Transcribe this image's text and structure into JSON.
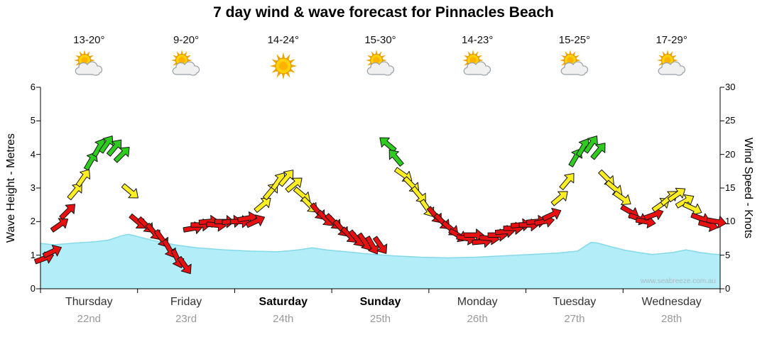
{
  "title": "7 day wind & wave forecast for Pinnacles Beach",
  "watermark": "www.seabreeze.com.au",
  "axes": {
    "left": {
      "label": "Wave Height - Metres",
      "ticks": [
        0,
        1,
        2,
        3,
        4,
        5,
        6
      ],
      "max": 6
    },
    "right": {
      "label": "Wind Speed - Knots",
      "ticks": [
        0,
        5,
        10,
        15,
        20,
        25,
        30
      ],
      "max": 30
    }
  },
  "days": [
    {
      "name": "Thursday",
      "date": "22nd",
      "temp": "13-20°",
      "icon": "partly-cloudy",
      "emphasis": false
    },
    {
      "name": "Friday",
      "date": "23rd",
      "temp": "9-20°",
      "icon": "partly-cloudy",
      "emphasis": false
    },
    {
      "name": "Saturday",
      "date": "24th",
      "temp": "14-24°",
      "icon": "sunny",
      "emphasis": true
    },
    {
      "name": "Sunday",
      "date": "25th",
      "temp": "15-30°",
      "icon": "partly-cloudy",
      "emphasis": true
    },
    {
      "name": "Monday",
      "date": "26th",
      "temp": "14-23°",
      "icon": "partly-cloudy",
      "emphasis": false
    },
    {
      "name": "Tuesday",
      "date": "27th",
      "temp": "15-25°",
      "icon": "partly-cloudy",
      "emphasis": false
    },
    {
      "name": "Wednesday",
      "date": "28th",
      "temp": "17-29°",
      "icon": "partly-cloudy",
      "emphasis": false
    }
  ],
  "colors": {
    "wave_fill": "#b2edf8",
    "wave_stroke": "#84d9ea",
    "wind_low": "#e81010",
    "wind_mid": "#ffee22",
    "wind_high": "#2ecc1e",
    "axis": "#000000",
    "date_text": "#999999",
    "watermark_text": "#a9bcc2"
  },
  "chart_data": {
    "type": "area",
    "title": "7 day wind & wave forecast for Pinnacles Beach",
    "xlabel": "",
    "ylabel_left": "Wave Height - Metres",
    "ylabel_right": "Wind Speed - Knots",
    "x_axis": {
      "unit": "day",
      "categories": [
        "Thursday 22nd",
        "Friday 23rd",
        "Saturday 24th",
        "Sunday 25th",
        "Monday 26th",
        "Tuesday 27th",
        "Wednesday 28th"
      ]
    },
    "grid": false,
    "legend": "none",
    "wave_series": {
      "name": "Wave Height (m)",
      "ylim": [
        0,
        6
      ],
      "points": [
        [
          0,
          1.35
        ],
        [
          0.02,
          1.31
        ],
        [
          0.05,
          1.36
        ],
        [
          0.08,
          1.4
        ],
        [
          0.1,
          1.45
        ],
        [
          0.12,
          1.58
        ],
        [
          0.13,
          1.62
        ],
        [
          0.15,
          1.52
        ],
        [
          0.17,
          1.42
        ],
        [
          0.2,
          1.3
        ],
        [
          0.23,
          1.22
        ],
        [
          0.27,
          1.16
        ],
        [
          0.31,
          1.12
        ],
        [
          0.35,
          1.1
        ],
        [
          0.38,
          1.16
        ],
        [
          0.4,
          1.22
        ],
        [
          0.42,
          1.16
        ],
        [
          0.45,
          1.1
        ],
        [
          0.48,
          1.04
        ],
        [
          0.52,
          0.98
        ],
        [
          0.56,
          0.94
        ],
        [
          0.6,
          0.92
        ],
        [
          0.64,
          0.94
        ],
        [
          0.68,
          0.98
        ],
        [
          0.72,
          1.02
        ],
        [
          0.76,
          1.06
        ],
        [
          0.79,
          1.12
        ],
        [
          0.8,
          1.25
        ],
        [
          0.81,
          1.38
        ],
        [
          0.82,
          1.36
        ],
        [
          0.84,
          1.25
        ],
        [
          0.86,
          1.15
        ],
        [
          0.88,
          1.08
        ],
        [
          0.9,
          1.02
        ],
        [
          0.93,
          1.08
        ],
        [
          0.95,
          1.16
        ],
        [
          0.97,
          1.08
        ],
        [
          0.99,
          1.03
        ],
        [
          1,
          1.02
        ]
      ]
    },
    "wind_series": {
      "name": "Wind Speed (knots)",
      "ylim": [
        0,
        30
      ],
      "note": "points are [t (0-1 across week), knots, arrow direction degrees (0=right, +cw)]",
      "points": [
        [
          0.005,
          4.5,
          -20
        ],
        [
          0.017,
          5.5,
          -25
        ],
        [
          0.028,
          9.5,
          -35
        ],
        [
          0.04,
          11.5,
          -45
        ],
        [
          0.051,
          14.5,
          -50
        ],
        [
          0.063,
          16.5,
          -55
        ],
        [
          0.074,
          19,
          -60
        ],
        [
          0.086,
          21,
          -60
        ],
        [
          0.097,
          21.5,
          -55
        ],
        [
          0.109,
          21,
          -50
        ],
        [
          0.12,
          20,
          -45
        ],
        [
          0.132,
          14.5,
          40
        ],
        [
          0.143,
          10,
          40
        ],
        [
          0.155,
          9.5,
          45
        ],
        [
          0.166,
          8.5,
          50
        ],
        [
          0.178,
          7.5,
          55
        ],
        [
          0.189,
          6,
          60
        ],
        [
          0.201,
          4.5,
          65
        ],
        [
          0.212,
          3.5,
          55
        ],
        [
          0.224,
          9,
          -10
        ],
        [
          0.235,
          9.5,
          0
        ],
        [
          0.247,
          10,
          -5
        ],
        [
          0.258,
          9.5,
          5
        ],
        [
          0.27,
          10,
          0
        ],
        [
          0.281,
          10,
          -5
        ],
        [
          0.293,
          10,
          0
        ],
        [
          0.304,
          10.5,
          -10
        ],
        [
          0.316,
          10,
          -25
        ],
        [
          0.327,
          12.5,
          -40
        ],
        [
          0.339,
          14.5,
          -50
        ],
        [
          0.35,
          16,
          -55
        ],
        [
          0.362,
          16.5,
          -50
        ],
        [
          0.373,
          15.5,
          -40
        ],
        [
          0.385,
          14,
          40
        ],
        [
          0.396,
          12.5,
          45
        ],
        [
          0.408,
          11.5,
          50
        ],
        [
          0.419,
          10.5,
          45
        ],
        [
          0.431,
          10,
          45
        ],
        [
          0.442,
          9,
          50
        ],
        [
          0.454,
          8,
          45
        ],
        [
          0.465,
          7.5,
          50
        ],
        [
          0.477,
          7,
          55
        ],
        [
          0.488,
          6.5,
          60
        ],
        [
          0.5,
          6.5,
          55
        ],
        [
          0.511,
          21.5,
          -140
        ],
        [
          0.523,
          19.5,
          -130
        ],
        [
          0.534,
          17,
          35
        ],
        [
          0.546,
          15.5,
          45
        ],
        [
          0.557,
          14,
          50
        ],
        [
          0.569,
          12,
          55
        ],
        [
          0.58,
          11,
          50
        ],
        [
          0.591,
          10,
          45
        ],
        [
          0.603,
          9,
          40
        ],
        [
          0.614,
          8,
          30
        ],
        [
          0.626,
          7.5,
          10
        ],
        [
          0.637,
          8,
          0
        ],
        [
          0.649,
          7,
          -5
        ],
        [
          0.66,
          7.5,
          5
        ],
        [
          0.672,
          8,
          0
        ],
        [
          0.683,
          8.5,
          -5
        ],
        [
          0.695,
          9,
          0
        ],
        [
          0.706,
          9.5,
          -5
        ],
        [
          0.718,
          9.5,
          0
        ],
        [
          0.729,
          10,
          -5
        ],
        [
          0.741,
          10,
          -10
        ],
        [
          0.752,
          11,
          -25
        ],
        [
          0.764,
          13.5,
          -40
        ],
        [
          0.775,
          16,
          -50
        ],
        [
          0.787,
          19.5,
          -60
        ],
        [
          0.798,
          21,
          -60
        ],
        [
          0.81,
          21.5,
          -55
        ],
        [
          0.821,
          20.5,
          -50
        ],
        [
          0.833,
          16.5,
          45
        ],
        [
          0.844,
          15,
          40
        ],
        [
          0.856,
          13.5,
          35
        ],
        [
          0.867,
          11.5,
          30
        ],
        [
          0.879,
          10.5,
          20
        ],
        [
          0.89,
          10,
          10
        ],
        [
          0.902,
          11,
          -20
        ],
        [
          0.913,
          12.5,
          -35
        ],
        [
          0.925,
          13.5,
          -40
        ],
        [
          0.936,
          14,
          -35
        ],
        [
          0.948,
          13,
          -30
        ],
        [
          0.959,
          12,
          25
        ],
        [
          0.971,
          10.5,
          20
        ],
        [
          0.982,
          9.5,
          15
        ],
        [
          0.994,
          10,
          10
        ]
      ]
    },
    "color_thresholds": {
      "yellow_at_or_above_knots": 12,
      "green_at_or_above_knots": 18
    }
  }
}
